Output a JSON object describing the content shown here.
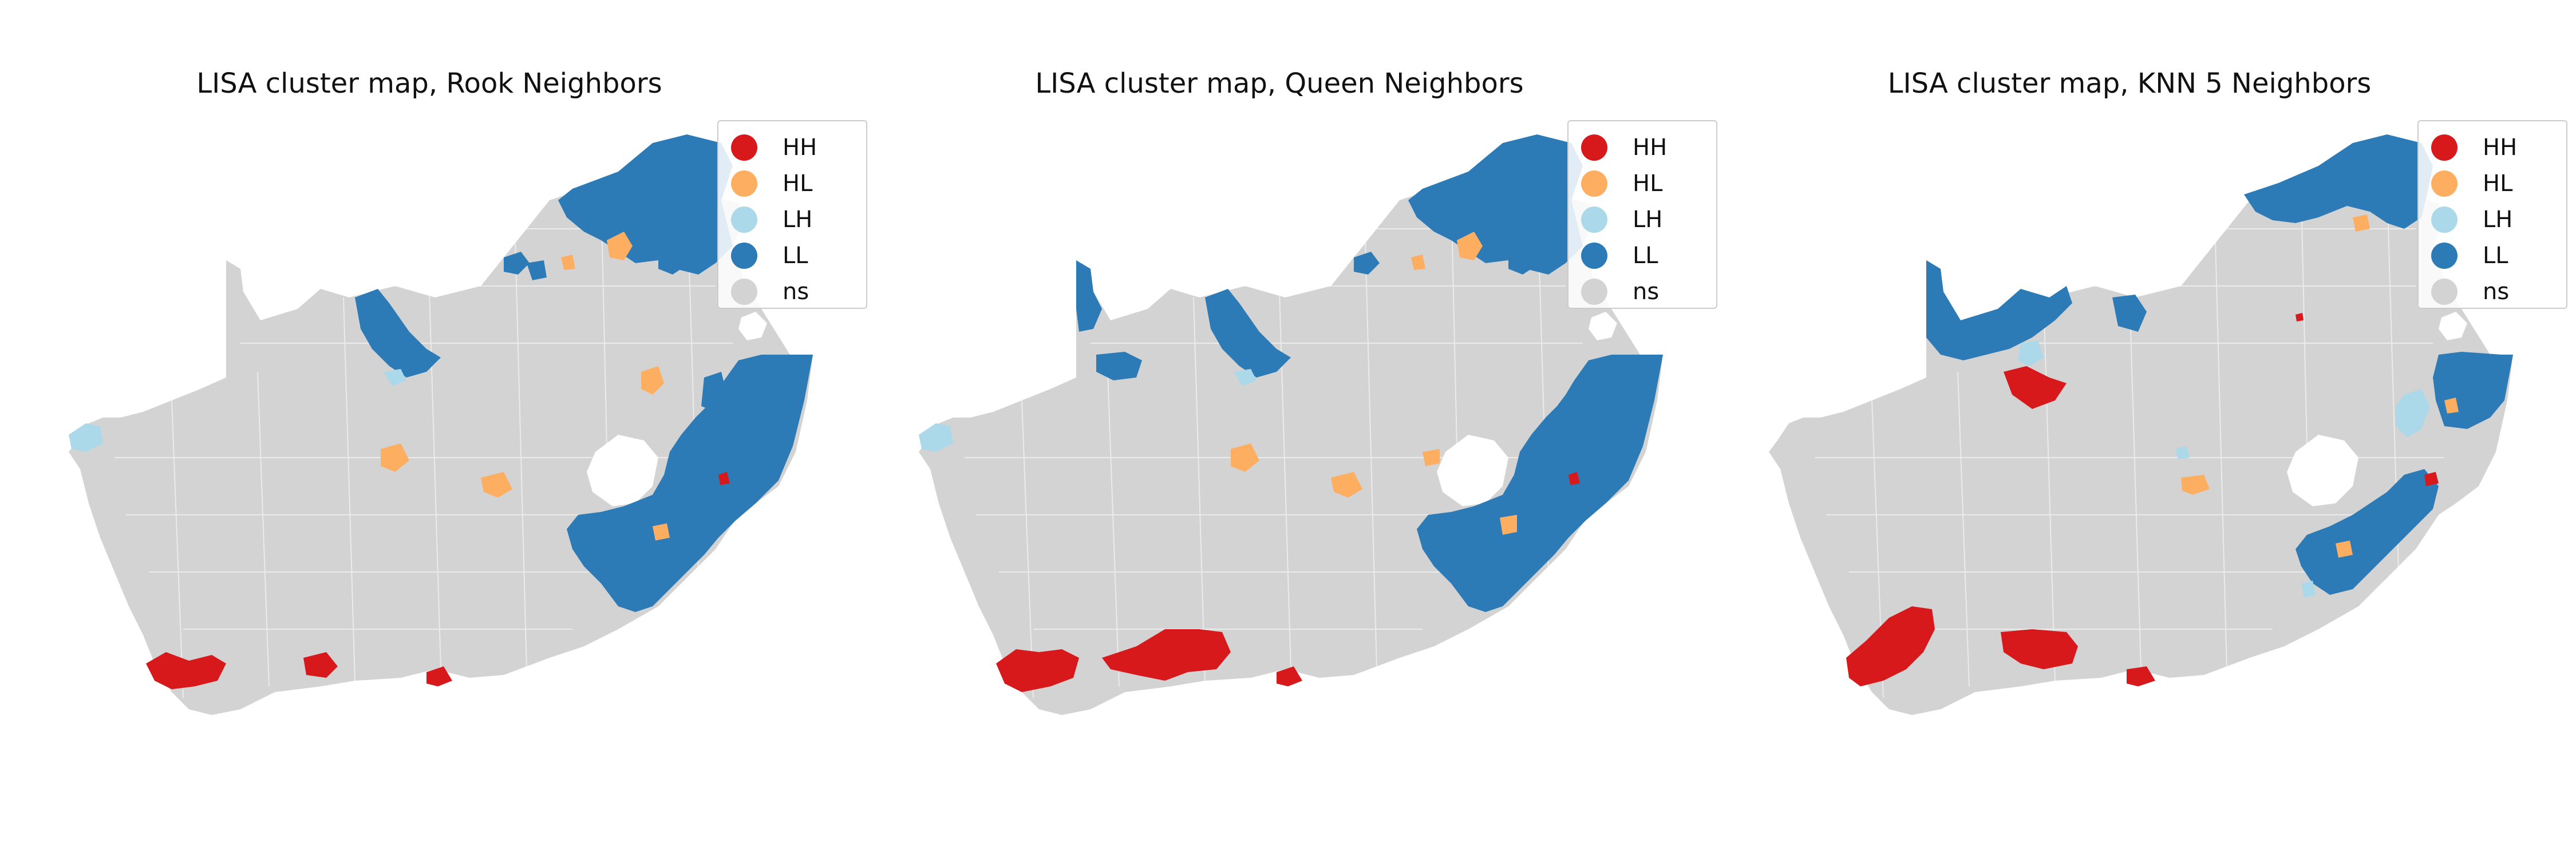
{
  "figure": {
    "panels": [
      {
        "id": "rook",
        "title": "LISA cluster map, Rook Neighbors"
      },
      {
        "id": "queen",
        "title": "LISA cluster map, Queen Neighbors"
      },
      {
        "id": "knn",
        "title": "LISA cluster map, KNN 5 Neighbors"
      }
    ]
  },
  "legend": {
    "items": [
      {
        "label": "HH",
        "color": "#d7191c"
      },
      {
        "label": "HL",
        "color": "#fdae61"
      },
      {
        "label": "LH",
        "color": "#abd9e9"
      },
      {
        "label": "LL",
        "color": "#2c7bb6"
      },
      {
        "label": "ns",
        "color": "#d3d3d3"
      }
    ]
  },
  "colors": {
    "HH": "#d7191c",
    "HL": "#fdae61",
    "LH": "#abd9e9",
    "LL": "#2c7bb6",
    "ns": "#d3d3d3"
  }
}
